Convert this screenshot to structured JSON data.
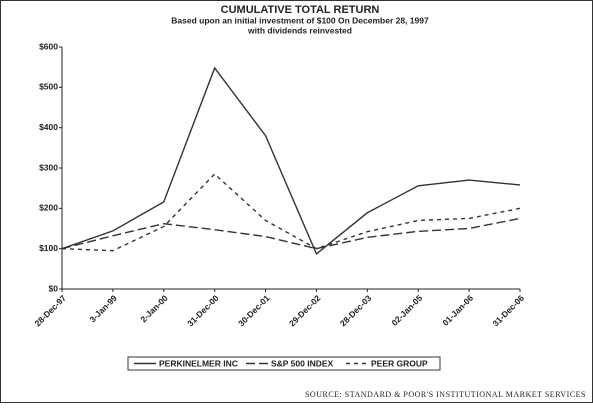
{
  "chart_data": {
    "type": "line",
    "title": "CUMULATIVE TOTAL RETURN",
    "subtitle": [
      "Based upon an initial investment of $100 On December 28, 1997",
      "with dividends reinvested"
    ],
    "categories": [
      "28-Dec-97",
      "3-Jan-99",
      "2-Jan-00",
      "31-Dec-00",
      "30-Dec-01",
      "29-Dec-02",
      "28-Dec-03",
      "02-Jan-05",
      "01-Jan-06",
      "31-Dec-06"
    ],
    "series": [
      {
        "name": "PERKINELMER INC",
        "color": "#333333",
        "values": [
          100,
          144,
          216,
          548,
          380,
          87,
          189,
          256,
          270,
          258
        ]
      },
      {
        "name": "S&P 500 INDEX",
        "color": "#333333",
        "values": [
          100,
          132,
          162,
          147,
          130,
          100,
          128,
          143,
          150,
          175
        ]
      },
      {
        "name": "PEER GROUP",
        "color": "#333333",
        "values": [
          100,
          95,
          155,
          285,
          170,
          100,
          142,
          170,
          175,
          200
        ]
      }
    ],
    "ylim": [
      0,
      600
    ],
    "yticks": [
      {
        "value": 0,
        "label": "$0"
      },
      {
        "value": 100,
        "label": "$100"
      },
      {
        "value": 200,
        "label": "$200"
      },
      {
        "value": 300,
        "label": "$300"
      },
      {
        "value": 400,
        "label": "$400"
      },
      {
        "value": 500,
        "label": "$500"
      },
      {
        "value": 600,
        "label": "$600"
      }
    ],
    "source": "SOURCE: STANDARD & POOR'S INSTITUTIONAL MARKET SERVICES"
  }
}
